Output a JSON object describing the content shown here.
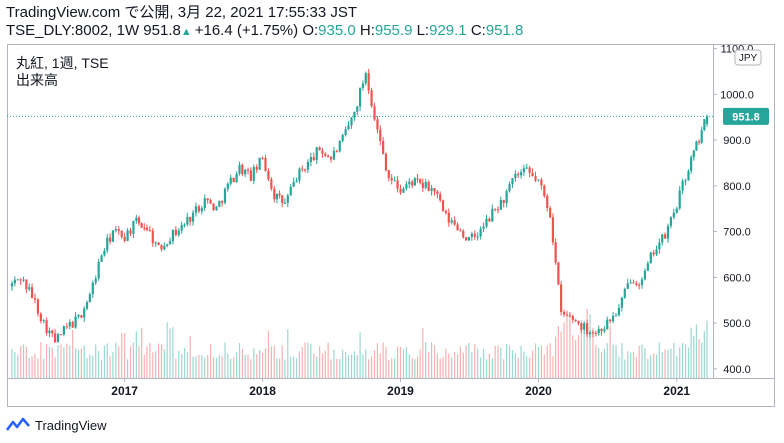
{
  "header": {
    "line1": "TradingView.com で公開, 3月 22, 2021 17:55:33 JST",
    "symbol_prefix": "TSE_DLY:8002, 1W 951.8",
    "change": "+16.4 (+1.75%)",
    "o_label": "O:",
    "o_value": "935.0",
    "h_label": "H:",
    "h_value": "955.9",
    "l_label": "L:",
    "l_value": "929.1",
    "c_label": "C:",
    "c_value": "951.8"
  },
  "legend": {
    "title": "丸紅, 1週, TSE",
    "volume_label": "出来高"
  },
  "currency": "JPY",
  "last_price_label": "951.8",
  "footer": {
    "brand": "TradingView"
  },
  "colors": {
    "up": "#26a69a",
    "down": "#ef5350",
    "axis_text": "#131722",
    "grid": "#f0f3fa",
    "background": "#ffffff"
  },
  "chart_data": {
    "type": "candlestick",
    "title": "丸紅, 1週, TSE",
    "symbol": "TSE_DLY:8002",
    "interval": "1W",
    "x_axis": {
      "tick_labels": [
        "2017",
        "2018",
        "2019",
        "2020",
        "2021"
      ],
      "range": [
        "2016-03",
        "2021-03"
      ]
    },
    "y_axis": {
      "tick_labels": [
        "400.0",
        "500.0",
        "600.0",
        "700.0",
        "800.0",
        "900.0",
        "1000.0",
        "1100.0"
      ],
      "range": [
        380,
        1110
      ],
      "position": "right"
    },
    "grid": false,
    "last_price": 951.8,
    "close_series_approx": [
      [
        "2016-03",
        580
      ],
      [
        "2016-04",
        600
      ],
      [
        "2016-05",
        560
      ],
      [
        "2016-06",
        500
      ],
      [
        "2016-07",
        460
      ],
      [
        "2016-08",
        490
      ],
      [
        "2016-09",
        510
      ],
      [
        "2016-10",
        560
      ],
      [
        "2016-11",
        650
      ],
      [
        "2016-12",
        700
      ],
      [
        "2017-01",
        690
      ],
      [
        "2017-02",
        720
      ],
      [
        "2017-03",
        710
      ],
      [
        "2017-04",
        660
      ],
      [
        "2017-05",
        690
      ],
      [
        "2017-06",
        710
      ],
      [
        "2017-07",
        740
      ],
      [
        "2017-08",
        770
      ],
      [
        "2017-09",
        750
      ],
      [
        "2017-10",
        800
      ],
      [
        "2017-11",
        840
      ],
      [
        "2017-12",
        820
      ],
      [
        "2018-01",
        860
      ],
      [
        "2018-02",
        780
      ],
      [
        "2018-03",
        760
      ],
      [
        "2018-04",
        820
      ],
      [
        "2018-05",
        850
      ],
      [
        "2018-06",
        880
      ],
      [
        "2018-07",
        860
      ],
      [
        "2018-08",
        900
      ],
      [
        "2018-09",
        960
      ],
      [
        "2018-10",
        1050
      ],
      [
        "2018-11",
        920
      ],
      [
        "2018-12",
        820
      ],
      [
        "2019-01",
        790
      ],
      [
        "2019-02",
        810
      ],
      [
        "2019-03",
        800
      ],
      [
        "2019-04",
        790
      ],
      [
        "2019-05",
        730
      ],
      [
        "2019-06",
        710
      ],
      [
        "2019-07",
        680
      ],
      [
        "2019-08",
        700
      ],
      [
        "2019-09",
        740
      ],
      [
        "2019-10",
        770
      ],
      [
        "2019-11",
        820
      ],
      [
        "2019-12",
        830
      ],
      [
        "2020-01",
        810
      ],
      [
        "2020-02",
        740
      ],
      [
        "2020-03",
        520
      ],
      [
        "2020-04",
        510
      ],
      [
        "2020-05",
        490
      ],
      [
        "2020-06",
        480
      ],
      [
        "2020-07",
        500
      ],
      [
        "2020-08",
        530
      ],
      [
        "2020-09",
        600
      ],
      [
        "2020-10",
        590
      ],
      [
        "2020-11",
        660
      ],
      [
        "2020-12",
        690
      ],
      [
        "2021-01",
        760
      ],
      [
        "2021-02",
        840
      ],
      [
        "2021-03",
        951.8
      ]
    ]
  }
}
